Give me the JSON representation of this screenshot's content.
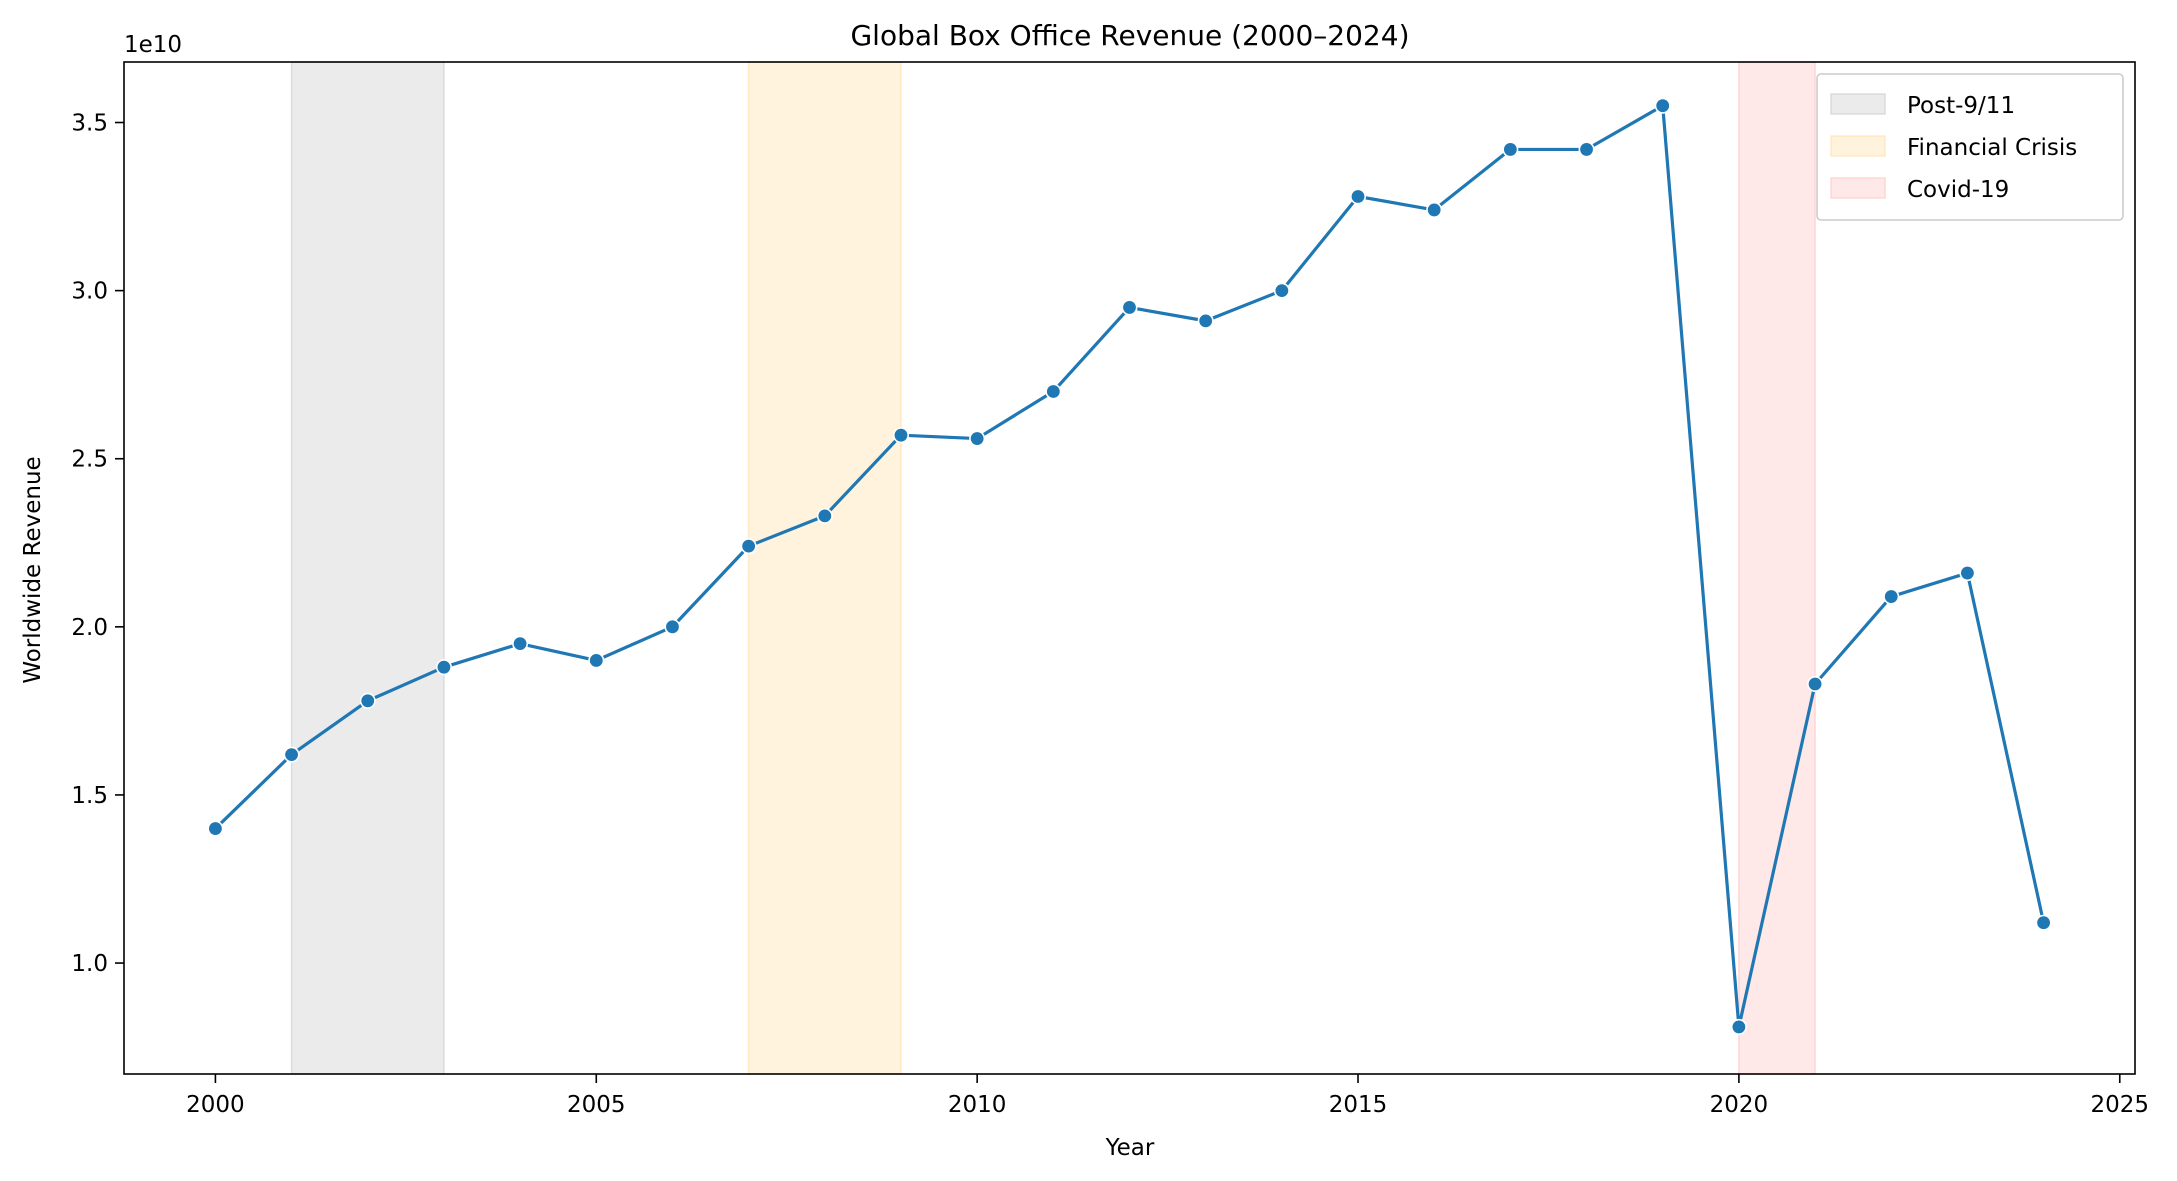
{
  "chart_data": {
    "type": "line",
    "title": "Global Box Office Revenue (2000–2024)",
    "xlabel": "Year",
    "ylabel": "Worldwide Revenue",
    "y_offset_text": "1e10",
    "xlim": [
      1998.8,
      2025.2
    ],
    "ylim": [
      0.67,
      3.68
    ],
    "y_scale_factor": 10000000000,
    "xticks": [
      2000,
      2005,
      2010,
      2015,
      2020,
      2025
    ],
    "xtick_labels": [
      "2000",
      "2005",
      "2010",
      "2015",
      "2020",
      "2025"
    ],
    "yticks": [
      1.0,
      1.5,
      2.0,
      2.5,
      3.0,
      3.5
    ],
    "ytick_labels": [
      "1.0",
      "1.5",
      "2.0",
      "2.5",
      "3.0",
      "3.5"
    ],
    "grid": false,
    "legend_placement": "top-right",
    "line_color": "#1f77b4",
    "x": [
      2000,
      2001,
      2002,
      2003,
      2004,
      2005,
      2006,
      2007,
      2008,
      2009,
      2010,
      2011,
      2012,
      2013,
      2014,
      2015,
      2016,
      2017,
      2018,
      2019,
      2020,
      2021,
      2022,
      2023,
      2024
    ],
    "values": [
      1.4,
      1.62,
      1.78,
      1.88,
      1.95,
      1.9,
      2.0,
      2.24,
      2.33,
      2.57,
      2.56,
      2.7,
      2.95,
      2.91,
      3.0,
      3.28,
      3.24,
      3.42,
      3.42,
      3.55,
      0.81,
      1.83,
      2.09,
      2.16,
      1.12
    ],
    "shaded_regions": [
      {
        "name": "Post-9/11",
        "start": 2001,
        "end": 2003,
        "color": "#d3d3d3",
        "opacity": 0.45
      },
      {
        "name": "Financial Crisis",
        "start": 2007,
        "end": 2009,
        "color": "#ffe4b5",
        "opacity": 0.45
      },
      {
        "name": "Covid-19",
        "start": 2020,
        "end": 2021,
        "color": "#ffcccc",
        "opacity": 0.45
      }
    ]
  }
}
